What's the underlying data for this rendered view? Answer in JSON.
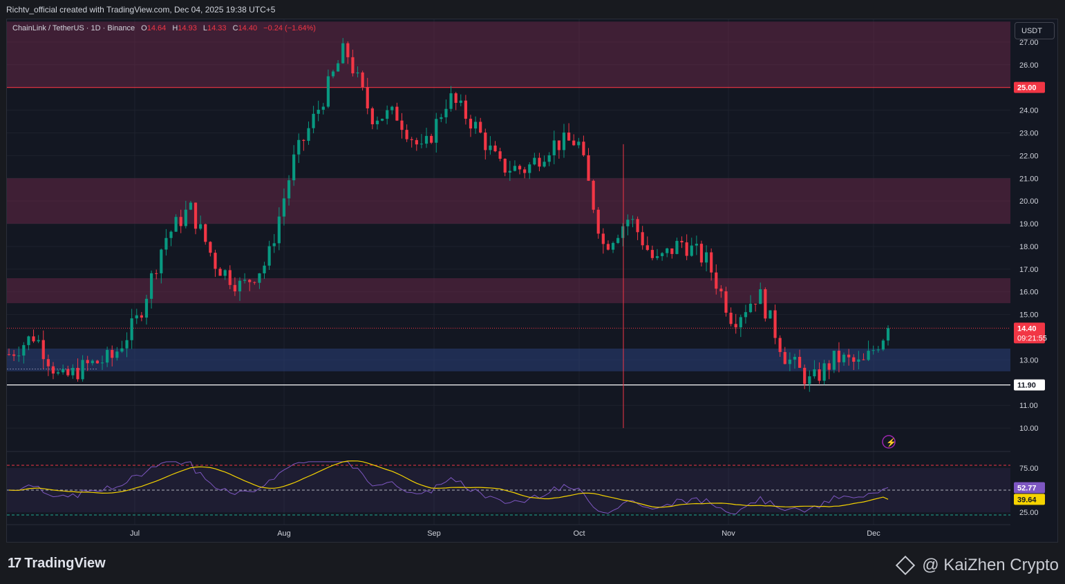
{
  "header": {
    "attribution": "Richtv_official created with TradingView.com, Dec 04, 2025 19:38 UTC+5"
  },
  "legend": {
    "symbol": "ChainLink / TetherUS · 1D · Binance",
    "o_label": "O",
    "o_value": "14.64",
    "h_label": "H",
    "h_value": "14.93",
    "l_label": "L",
    "l_value": "14.33",
    "c_label": "C",
    "c_value": "14.40",
    "change": "−0.24 (−1.64%)"
  },
  "price_axis": {
    "unit": "USDT",
    "ticks": [
      "27.00",
      "26.00",
      "24.00",
      "23.00",
      "22.00",
      "21.00",
      "20.00",
      "19.00",
      "18.00",
      "17.00",
      "16.00",
      "15.00",
      "13.00",
      "11.00",
      "10.00"
    ],
    "resistance_label": "25.00",
    "support_label": "11.90",
    "last_price_label": "14.40",
    "countdown": "09:21:55"
  },
  "time_axis": {
    "labels": [
      "Jul",
      "Aug",
      "Sep",
      "Oct",
      "Nov",
      "Dec"
    ]
  },
  "rsi_axis": {
    "ticks": [
      "75.00",
      "25.00"
    ],
    "rsi_value": "52.77",
    "rsi_ma_value": "39.64"
  },
  "footer": {
    "brand": "TradingView",
    "watermark": "@ KaiZhen Crypto"
  },
  "colors": {
    "up": "#089981",
    "down": "#f23645",
    "resistance_zone": "rgba(136,46,84,0.38)",
    "support_zone": "rgba(41,63,122,0.55)",
    "rsi_line": "#7e57c2",
    "rsi_ma": "#f5d300"
  },
  "chart_data": {
    "type": "candlestick",
    "symbol": "LINK/USDT",
    "timeframe": "1D",
    "ylim": [
      9.0,
      28.0
    ],
    "x_labels": [
      "Jul",
      "Aug",
      "Sep",
      "Oct",
      "Nov",
      "Dec"
    ],
    "anchors": [
      [
        13.5,
        13.0
      ],
      [
        15.6,
        12.6
      ],
      [
        12.0,
        12.2
      ],
      [
        13.0,
        12.5
      ],
      [
        13.2,
        13.0
      ],
      [
        14.9,
        14.8
      ],
      [
        18.0,
        18.6
      ],
      [
        19.8,
        19.6
      ],
      [
        17.6,
        16.8
      ],
      [
        16.0,
        16.4
      ],
      [
        17.4,
        17.3
      ],
      [
        21.0,
        22.5
      ],
      [
        23.5,
        24.8
      ],
      [
        27.0,
        26.5
      ],
      [
        24.2,
        23.3
      ],
      [
        24.6,
        23.0
      ],
      [
        22.2,
        22.0
      ],
      [
        24.7,
        24.5
      ],
      [
        23.3,
        23.4
      ],
      [
        22.0,
        21.0
      ],
      [
        21.2,
        21.6
      ],
      [
        22.8,
        22.2
      ],
      [
        22.6,
        22.7
      ],
      [
        17.4,
        18.6
      ],
      [
        19.5,
        19.1
      ],
      [
        17.0,
        17.5
      ],
      [
        18.5,
        17.9
      ],
      [
        17.3,
        17.4
      ],
      [
        14.6,
        14.9
      ],
      [
        16.4,
        15.5
      ],
      [
        13.7,
        12.7
      ],
      [
        11.8,
        12.2
      ],
      [
        13.4,
        12.8
      ],
      [
        12.0,
        13.5
      ],
      [
        14.4,
        14.4
      ]
    ],
    "zones": [
      {
        "type": "resistance",
        "from": 25.0,
        "to": 27.9
      },
      {
        "type": "resistance",
        "from": 19.0,
        "to": 21.0
      },
      {
        "type": "resistance",
        "from": 15.5,
        "to": 16.6
      },
      {
        "type": "support",
        "from": 12.5,
        "to": 13.5
      }
    ],
    "levels": {
      "resistance": 25.0,
      "support": 11.9,
      "last": 14.4
    },
    "rsi": {
      "current": 52.77,
      "ma": 39.64,
      "upper": 75,
      "lower": 25
    }
  }
}
